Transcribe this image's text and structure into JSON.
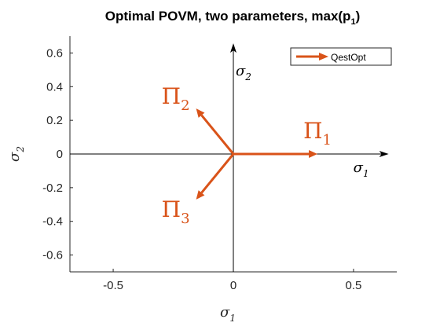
{
  "chart_data": {
    "type": "vector",
    "title": "Optimal POVM, two parameters, max(p",
    "title_subscript": "1",
    "title_suffix": ")",
    "xlabel": "σ",
    "xlabel_subscript": "1",
    "ylabel": "σ",
    "ylabel_subscript": "2",
    "xlim": [
      -0.68,
      0.68
    ],
    "ylim": [
      -0.7,
      0.7
    ],
    "xticks": [
      -0.5,
      0,
      0.5
    ],
    "xtick_labels": [
      "-0.5",
      "0",
      "0.5"
    ],
    "yticks": [
      0.6,
      0.4,
      0.2,
      0,
      -0.2,
      -0.4,
      -0.6
    ],
    "ytick_labels": [
      "0.6",
      "0.4",
      "0.2",
      "0",
      "-0.2",
      "-0.4",
      "-0.6"
    ],
    "grid": false,
    "legend": {
      "position": "top-right",
      "entries": [
        "QestOpt"
      ]
    },
    "series_color": "#D95319",
    "vectors": [
      {
        "label": "Π",
        "subscript": "1",
        "x0": 0,
        "y0": 0,
        "x1": 0.35,
        "y1": 0
      },
      {
        "label": "Π",
        "subscript": "2",
        "x0": 0,
        "y0": 0,
        "x1": -0.155,
        "y1": 0.27
      },
      {
        "label": "Π",
        "subscript": "3",
        "x0": 0,
        "y0": 0,
        "x1": -0.155,
        "y1": -0.27
      }
    ],
    "inner_axes": {
      "x_label": "σ",
      "x_subscript": "1",
      "y_label": "σ",
      "y_subscript": "2",
      "x_extent": [
        -0.68,
        0.62
      ],
      "y_extent": [
        -0.7,
        0.62
      ]
    }
  }
}
